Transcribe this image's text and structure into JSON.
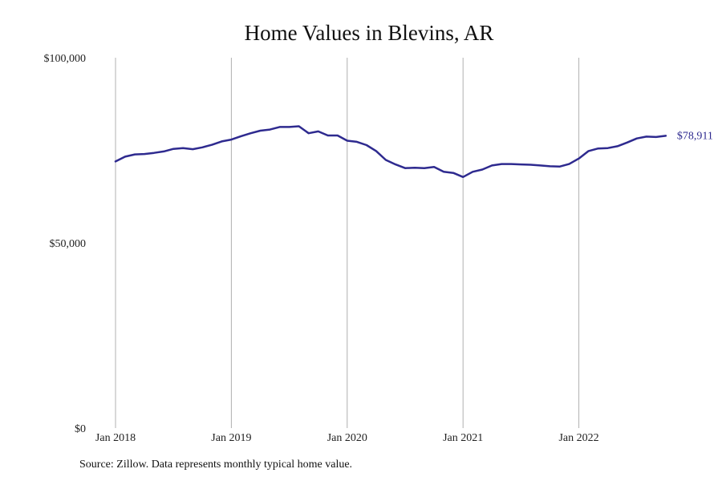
{
  "source_note": "Source: Zillow. Data represents monthly typical home value.",
  "chart_data": {
    "type": "line",
    "title": "Home Values in Blevins, AR",
    "xlabel": "",
    "ylabel": "",
    "x": [
      "2018-01",
      "2018-02",
      "2018-03",
      "2018-04",
      "2018-05",
      "2018-06",
      "2018-07",
      "2018-08",
      "2018-09",
      "2018-10",
      "2018-11",
      "2018-12",
      "2019-01",
      "2019-02",
      "2019-03",
      "2019-04",
      "2019-05",
      "2019-06",
      "2019-07",
      "2019-08",
      "2019-09",
      "2019-10",
      "2019-11",
      "2019-12",
      "2020-01",
      "2020-02",
      "2020-03",
      "2020-04",
      "2020-05",
      "2020-06",
      "2020-07",
      "2020-08",
      "2020-09",
      "2020-10",
      "2020-11",
      "2020-12",
      "2021-01",
      "2021-02",
      "2021-03",
      "2021-04",
      "2021-05",
      "2021-06",
      "2021-07",
      "2021-08",
      "2021-09",
      "2021-10",
      "2021-11",
      "2021-12",
      "2022-01",
      "2022-02",
      "2022-03",
      "2022-04",
      "2022-05",
      "2022-06",
      "2022-07",
      "2022-08",
      "2022-09",
      "2022-10"
    ],
    "series": [
      {
        "values": [
          72000,
          73300,
          73900,
          74000,
          74300,
          74700,
          75400,
          75600,
          75300,
          75800,
          76500,
          77400,
          77900,
          78800,
          79600,
          80300,
          80600,
          81300,
          81300,
          81500,
          79600,
          80100,
          79000,
          79000,
          77600,
          77300,
          76400,
          74800,
          72400,
          71200,
          70200,
          70300,
          70200,
          70500,
          69200,
          68900,
          67800,
          69200,
          69800,
          70900,
          71300,
          71300,
          71200,
          71100,
          70900,
          70700,
          70600,
          71300,
          72800,
          74800,
          75500,
          75600,
          76100,
          77100,
          78200,
          78700,
          78600,
          78911
        ],
        "end_label": "$78,911"
      }
    ],
    "y_ticks": [
      {
        "value": 0,
        "label": "$0"
      },
      {
        "value": 50000,
        "label": "$50,000"
      },
      {
        "value": 100000,
        "label": "$100,000"
      }
    ],
    "x_ticks": [
      {
        "value": "2018-01",
        "label": "Jan 2018"
      },
      {
        "value": "2019-01",
        "label": "Jan 2019"
      },
      {
        "value": "2020-01",
        "label": "Jan 2020"
      },
      {
        "value": "2021-01",
        "label": "Jan 2021"
      },
      {
        "value": "2022-01",
        "label": "Jan 2022"
      }
    ],
    "ylim": [
      0,
      100000
    ],
    "xlim": [
      "2018-01",
      "2023-02"
    ],
    "grid": "vertical at year ticks",
    "legend": "none",
    "colors": {
      "line": "#2e2a8f",
      "grid": "#b0b0b0",
      "text": "#222222"
    }
  }
}
